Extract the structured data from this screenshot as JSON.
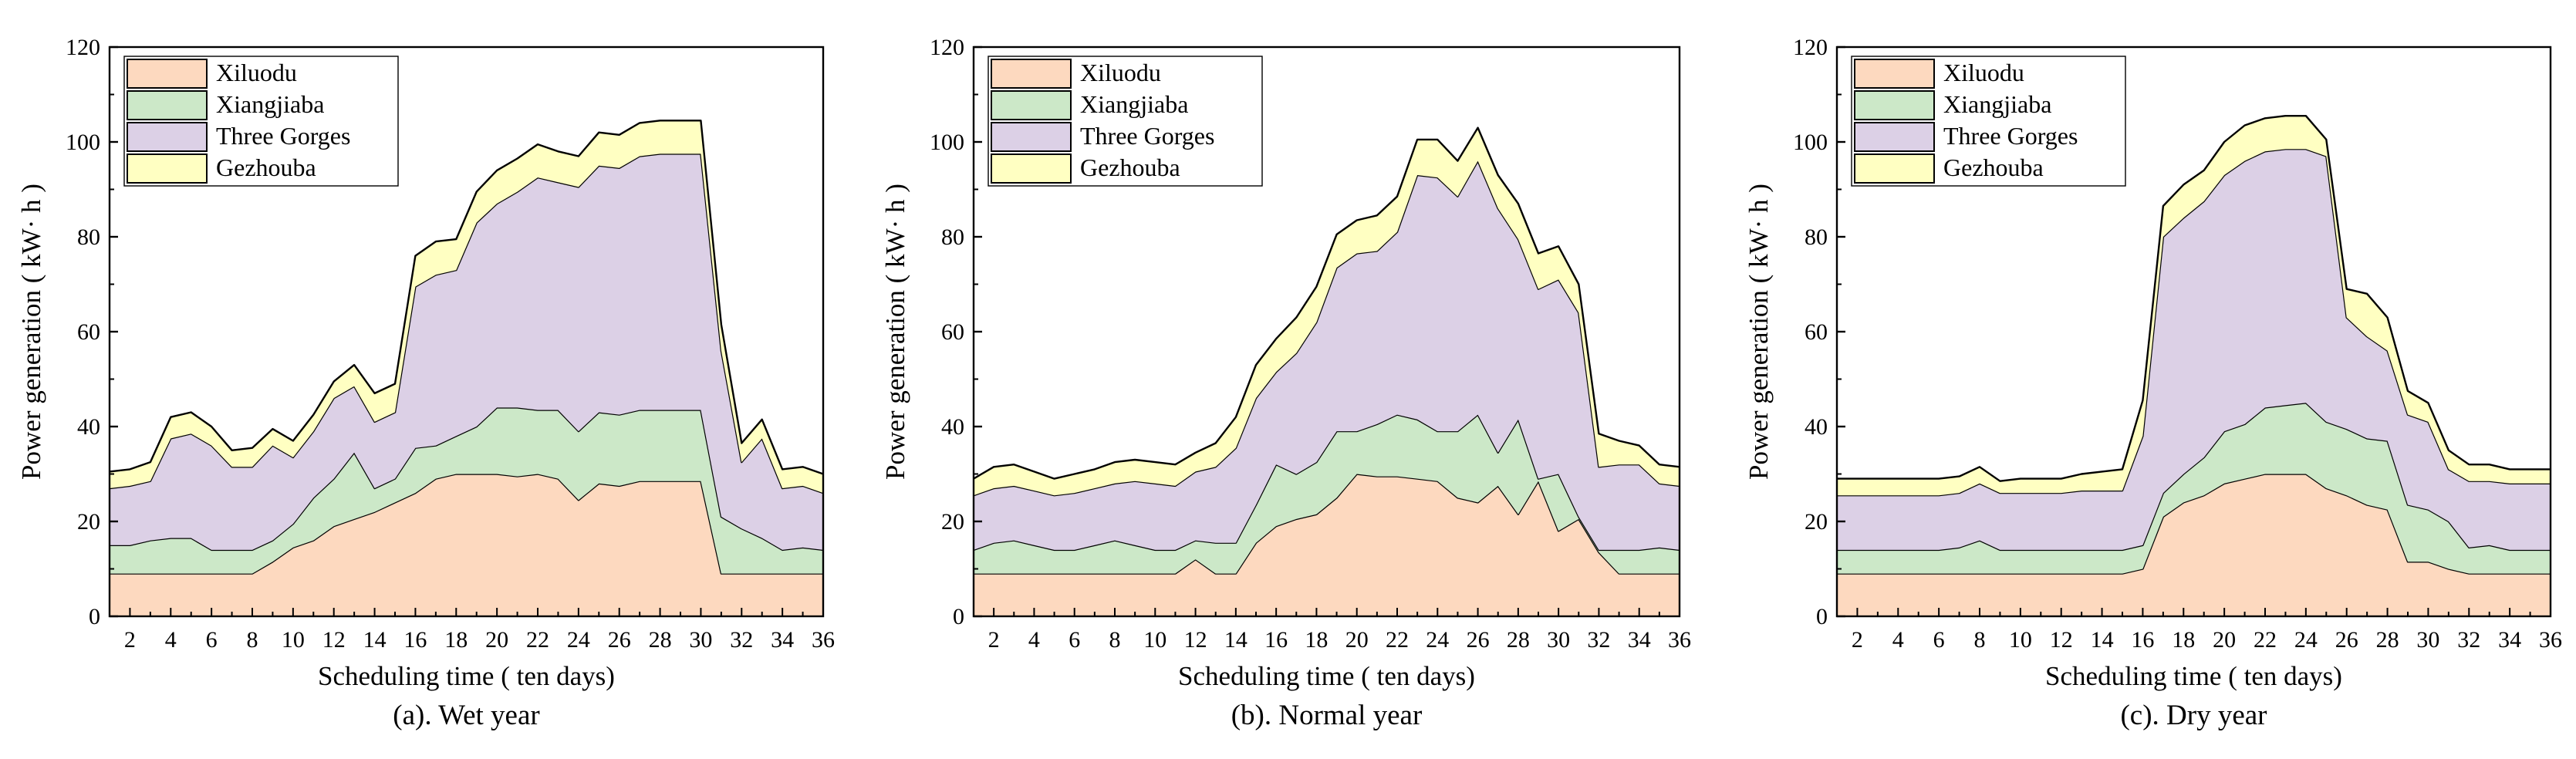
{
  "chart_data": [
    {
      "type": "area",
      "subtype": "stacked",
      "caption": "(a). Wet year",
      "xlabel": "Scheduling time ( ten days)",
      "ylabel": "Power generation ( kW· h )",
      "xlim": [
        1,
        36
      ],
      "ylim": [
        0,
        120
      ],
      "x_ticks": [
        2,
        4,
        6,
        8,
        10,
        12,
        14,
        16,
        18,
        20,
        22,
        24,
        26,
        28,
        30,
        32,
        34,
        36
      ],
      "y_ticks": [
        0,
        20,
        40,
        60,
        80,
        100,
        120
      ],
      "legend_position": "top-left",
      "x": [
        1,
        2,
        3,
        4,
        5,
        6,
        7,
        8,
        9,
        10,
        11,
        12,
        13,
        14,
        15,
        16,
        17,
        18,
        19,
        20,
        21,
        22,
        23,
        24,
        25,
        26,
        27,
        28,
        29,
        30,
        31,
        32,
        33,
        34,
        35,
        36
      ],
      "series": [
        {
          "name": "Xiluodu",
          "color": "#FDD9BF",
          "values": [
            9,
            9,
            9,
            9,
            9,
            9,
            9,
            9,
            11.5,
            14.5,
            16,
            19,
            20.5,
            22,
            24,
            26,
            29,
            30,
            30,
            30,
            29.5,
            30,
            29,
            24.5,
            28,
            27.5,
            28.5,
            28.5,
            28.5,
            28.5,
            9,
            9,
            9,
            9,
            9,
            9
          ]
        },
        {
          "name": "Xiangjiaba",
          "color": "#CCE8C8",
          "values": [
            6,
            6,
            7,
            7.5,
            7.5,
            5,
            5,
            5,
            4.5,
            5,
            9,
            10,
            14,
            5,
            5,
            9.5,
            7,
            8,
            10,
            14,
            14.5,
            13.5,
            14.5,
            14.5,
            15,
            15,
            15,
            15,
            15,
            15,
            12,
            9.5,
            7.5,
            5,
            5.5,
            5
          ]
        },
        {
          "name": "Three Gorges",
          "color": "#DCD0E6",
          "values": [
            12,
            12.5,
            12.5,
            21,
            22,
            22,
            17.5,
            17.5,
            20,
            14,
            14,
            17,
            14,
            14,
            14,
            34,
            36,
            35,
            43,
            43,
            45.5,
            49,
            48,
            51.5,
            52,
            52,
            53.5,
            54,
            54,
            54,
            35,
            14,
            21,
            13,
            13,
            12
          ]
        },
        {
          "name": "Gezhouba",
          "color": "#FFFFC2",
          "values": [
            3.5,
            3.5,
            4,
            4.5,
            4.5,
            4,
            3.5,
            4,
            3.5,
            3.5,
            3.5,
            3.5,
            4.5,
            6,
            6,
            6.5,
            7,
            6.5,
            6.5,
            7,
            7,
            7,
            6.5,
            6.5,
            7,
            7,
            7,
            7,
            7,
            7,
            5.5,
            4,
            4,
            4,
            4,
            4
          ]
        }
      ]
    },
    {
      "type": "area",
      "subtype": "stacked",
      "caption": "(b). Normal year",
      "xlabel": "Scheduling time ( ten days)",
      "ylabel": "Power generation ( kW· h )",
      "xlim": [
        1,
        36
      ],
      "ylim": [
        0,
        120
      ],
      "x_ticks": [
        2,
        4,
        6,
        8,
        10,
        12,
        14,
        16,
        18,
        20,
        22,
        24,
        26,
        28,
        30,
        32,
        34,
        36
      ],
      "y_ticks": [
        0,
        20,
        40,
        60,
        80,
        100,
        120
      ],
      "legend_position": "top-left",
      "x": [
        1,
        2,
        3,
        4,
        5,
        6,
        7,
        8,
        9,
        10,
        11,
        12,
        13,
        14,
        15,
        16,
        17,
        18,
        19,
        20,
        21,
        22,
        23,
        24,
        25,
        26,
        27,
        28,
        29,
        30,
        31,
        32,
        33,
        34,
        35,
        36
      ],
      "series": [
        {
          "name": "Xiluodu",
          "color": "#FDD9BF",
          "values": [
            9,
            9,
            9,
            9,
            9,
            9,
            9,
            9,
            9,
            9,
            9,
            12,
            9,
            9,
            15.5,
            19,
            20.5,
            21.5,
            25,
            30,
            29.5,
            29.5,
            29,
            28.5,
            25,
            24,
            27.5,
            21.5,
            28.5,
            18,
            20.5,
            13.5,
            9,
            9,
            9,
            9
          ]
        },
        {
          "name": "Xiangjiaba",
          "color": "#CCE8C8",
          "values": [
            5,
            6.5,
            7,
            6,
            5,
            5,
            6,
            7,
            6,
            5,
            5,
            4,
            6.5,
            6.5,
            8,
            13,
            9.5,
            11,
            14,
            9,
            11,
            13,
            12.5,
            10.5,
            14,
            18.5,
            7,
            20,
            0.5,
            12,
            0.5,
            0.5,
            5,
            5,
            5.5,
            5
          ]
        },
        {
          "name": "Three Gorges",
          "color": "#DCD0E6",
          "values": [
            11.5,
            11.5,
            11.5,
            11.5,
            11.5,
            12,
            12,
            12,
            13.5,
            14,
            13.5,
            14.5,
            16,
            20,
            22.5,
            19.5,
            25.5,
            29.5,
            34.5,
            37.5,
            36.5,
            38.5,
            51.5,
            53.5,
            49.5,
            53.5,
            51.5,
            38,
            40,
            41,
            43,
            17.5,
            18,
            18,
            13.5,
            13.5
          ]
        },
        {
          "name": "Gezhouba",
          "color": "#FFFFC2",
          "values": [
            3.5,
            4.5,
            4.5,
            4,
            3.5,
            4,
            4,
            4.5,
            4.5,
            4.5,
            4.5,
            4,
            5,
            6.5,
            7,
            7,
            7.5,
            7.5,
            7,
            7,
            7.5,
            7.5,
            7.5,
            8,
            7.5,
            7,
            7,
            7.5,
            7.5,
            7,
            6,
            7,
            5,
            4,
            4,
            4
          ]
        }
      ]
    },
    {
      "type": "area",
      "subtype": "stacked",
      "caption": "(c). Dry year",
      "xlabel": "Scheduling time ( ten days)",
      "ylabel": "Power generation ( kW· h )",
      "xlim": [
        1,
        36
      ],
      "ylim": [
        0,
        120
      ],
      "x_ticks": [
        2,
        4,
        6,
        8,
        10,
        12,
        14,
        16,
        18,
        20,
        22,
        24,
        26,
        28,
        30,
        32,
        34,
        36
      ],
      "y_ticks": [
        0,
        20,
        40,
        60,
        80,
        100,
        120
      ],
      "legend_position": "top-left",
      "x": [
        1,
        2,
        3,
        4,
        5,
        6,
        7,
        8,
        9,
        10,
        11,
        12,
        13,
        14,
        15,
        16,
        17,
        18,
        19,
        20,
        21,
        22,
        23,
        24,
        25,
        26,
        27,
        28,
        29,
        30,
        31,
        32,
        33,
        34,
        35,
        36
      ],
      "series": [
        {
          "name": "Xiluodu",
          "color": "#FDD9BF",
          "values": [
            9,
            9,
            9,
            9,
            9,
            9,
            9,
            9,
            9,
            9,
            9,
            9,
            9,
            9,
            9,
            10,
            21,
            24,
            25.5,
            28,
            29,
            30,
            30,
            30,
            27,
            25.5,
            23.5,
            22.5,
            11.5,
            11.5,
            10,
            9,
            9,
            9,
            9,
            9
          ]
        },
        {
          "name": "Xiangjiaba",
          "color": "#CCE8C8",
          "values": [
            5,
            5,
            5,
            5,
            5,
            5,
            5.5,
            7,
            5,
            5,
            5,
            5,
            5,
            5,
            5,
            5,
            5,
            6,
            8,
            11,
            11.5,
            14,
            14.5,
            15,
            14,
            14,
            14,
            14.5,
            12,
            11,
            10,
            5.5,
            6,
            5,
            5,
            5
          ]
        },
        {
          "name": "Three Gorges",
          "color": "#DCD0E6",
          "values": [
            11.5,
            11.5,
            11.5,
            11.5,
            11.5,
            11.5,
            11.5,
            12,
            12,
            12,
            12,
            12,
            12.5,
            12.5,
            12.5,
            23,
            54,
            54,
            54,
            54,
            55.5,
            54,
            54,
            53.5,
            56,
            23.5,
            21.5,
            19,
            19,
            18.5,
            11,
            14,
            13.5,
            14,
            14,
            14
          ]
        },
        {
          "name": "Gezhouba",
          "color": "#FFFFC2",
          "values": [
            3.5,
            3.5,
            3.5,
            3.5,
            3.5,
            3.5,
            3.5,
            3.5,
            2.5,
            3,
            3,
            3,
            3.5,
            4,
            4.5,
            7.5,
            6.5,
            7,
            6.5,
            7,
            7.5,
            7,
            7,
            7,
            3.5,
            6,
            9,
            7,
            5,
            4,
            4,
            3.5,
            3.5,
            3,
            3,
            3
          ]
        }
      ]
    }
  ]
}
